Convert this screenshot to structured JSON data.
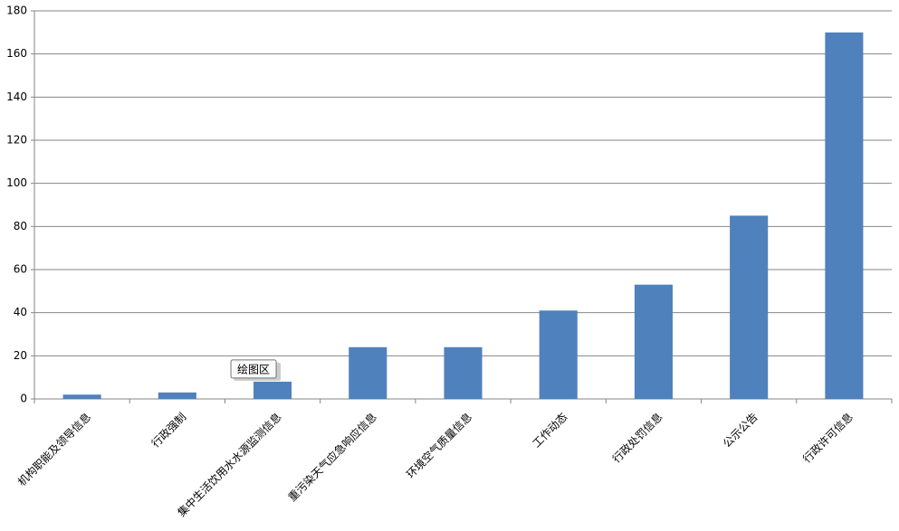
{
  "chart_data": {
    "type": "bar",
    "categories": [
      "机构职能及领导信息",
      "行政强制",
      "集中生活饮用水水源监测信息",
      "重污染天气应急响应信息",
      "环境空气质量信息",
      "工作动态",
      "行政处罚信息",
      "公示公告",
      "行政许可信息"
    ],
    "values": [
      2,
      3,
      8,
      24,
      24,
      41,
      53,
      85,
      170
    ],
    "color": "#4f81bd",
    "ylim": [
      0,
      180
    ],
    "yticks": [
      0,
      20,
      40,
      60,
      80,
      100,
      120,
      140,
      160,
      180
    ],
    "grid": true,
    "tooltip": "绘图区"
  }
}
